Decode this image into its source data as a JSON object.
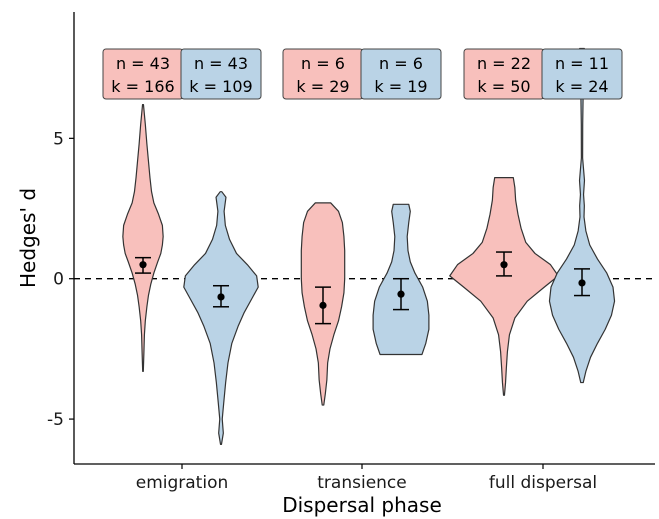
{
  "chart_data": {
    "type": "violin",
    "xlabel": "Dispersal phase",
    "ylabel": "Hedges' d",
    "ylim": [
      -6.6,
      9.5
    ],
    "yticks": [
      {
        "value": 5,
        "label": "5"
      },
      {
        "value": 0,
        "label": "0"
      },
      {
        "value": -5,
        "label": "-5"
      }
    ],
    "categories": [
      "emigration",
      "transience",
      "full dispersal"
    ],
    "reference_line": 0,
    "colors": {
      "group1": "#f8c0bc",
      "group2": "#bad3e6",
      "stroke": "#333333"
    },
    "groups": [
      {
        "category": "emigration",
        "series": [
          {
            "fill": "#f8c0bc",
            "n_label": "n = 43",
            "k_label": "k = 166",
            "mean": 0.5,
            "ci": [
              0.2,
              0.75
            ],
            "density": [
              [
                -3.3,
                0.2
              ],
              [
                -2.6,
                0.6
              ],
              [
                -2.0,
                0.9
              ],
              [
                -1.5,
                1.5
              ],
              [
                -1.0,
                2.5
              ],
              [
                -0.6,
                3.5
              ],
              [
                -0.2,
                5
              ],
              [
                0.2,
                7
              ],
              [
                0.6,
                9.5
              ],
              [
                0.9,
                11.5
              ],
              [
                1.2,
                12.5
              ],
              [
                1.5,
                13
              ],
              [
                1.9,
                12.5
              ],
              [
                2.3,
                10
              ],
              [
                2.7,
                7
              ],
              [
                3.1,
                5.5
              ],
              [
                3.6,
                4.5
              ],
              [
                4.2,
                3.5
              ],
              [
                4.8,
                2.5
              ],
              [
                5.5,
                1.5
              ],
              [
                6.2,
                0.3
              ]
            ]
          },
          {
            "fill": "#bad3e6",
            "n_label": "n = 43",
            "k_label": "k = 109",
            "mean": -0.65,
            "ci": [
              -1.0,
              -0.25
            ],
            "density": [
              [
                -5.9,
                0.3
              ],
              [
                -5.5,
                1.5
              ],
              [
                -5.0,
                0.8
              ],
              [
                -4.4,
                1.8
              ],
              [
                -3.7,
                3
              ],
              [
                -3.0,
                4.5
              ],
              [
                -2.3,
                7
              ],
              [
                -1.7,
                11
              ],
              [
                -1.2,
                15
              ],
              [
                -0.7,
                20
              ],
              [
                -0.3,
                24
              ],
              [
                0.1,
                23
              ],
              [
                0.5,
                17
              ],
              [
                0.9,
                10
              ],
              [
                1.4,
                5.5
              ],
              [
                1.9,
                2.8
              ],
              [
                2.4,
                2
              ],
              [
                2.9,
                3.2
              ],
              [
                3.1,
                0.5
              ]
            ]
          }
        ]
      },
      {
        "category": "transience",
        "series": [
          {
            "fill": "#f8c0bc",
            "n_label": "n = 6",
            "k_label": "k = 29",
            "mean": -0.95,
            "ci": [
              -1.6,
              -0.3
            ],
            "density": [
              [
                -4.5,
                0.5
              ],
              [
                -4.1,
                1.5
              ],
              [
                -3.6,
                2.5
              ],
              [
                -3.0,
                3
              ],
              [
                -2.5,
                4.5
              ],
              [
                -2.0,
                7
              ],
              [
                -1.5,
                10
              ],
              [
                -1.0,
                12
              ],
              [
                -0.5,
                13.5
              ],
              [
                0.0,
                14
              ],
              [
                0.5,
                14
              ],
              [
                1.0,
                14
              ],
              [
                1.5,
                13.5
              ],
              [
                2.0,
                12.5
              ],
              [
                2.4,
                10
              ],
              [
                2.7,
                5
              ]
            ]
          },
          {
            "fill": "#bad3e6",
            "n_label": "n = 6",
            "k_label": "k = 19",
            "mean": -0.55,
            "ci": [
              -1.1,
              0.0
            ],
            "density": [
              [
                -2.7,
                13.5
              ],
              [
                -2.3,
                16
              ],
              [
                -1.8,
                18
              ],
              [
                -1.3,
                18
              ],
              [
                -0.8,
                17
              ],
              [
                -0.3,
                14
              ],
              [
                0.2,
                9
              ],
              [
                0.6,
                6
              ],
              [
                1.0,
                4.5
              ],
              [
                1.5,
                4
              ],
              [
                2.0,
                5
              ],
              [
                2.4,
                6
              ],
              [
                2.65,
                5
              ]
            ]
          }
        ]
      },
      {
        "category": "full dispersal",
        "series": [
          {
            "fill": "#f8c0bc",
            "n_label": "n = 22",
            "k_label": "k = 50",
            "mean": 0.5,
            "ci": [
              0.1,
              0.95
            ],
            "density": [
              [
                -4.15,
                0.3
              ],
              [
                -3.7,
                1
              ],
              [
                -3.2,
                1.5
              ],
              [
                -2.6,
                2.2
              ],
              [
                -2.0,
                3.5
              ],
              [
                -1.4,
                7
              ],
              [
                -0.8,
                15
              ],
              [
                -0.3,
                26
              ],
              [
                0.1,
                35
              ],
              [
                0.5,
                30
              ],
              [
                0.9,
                20
              ],
              [
                1.3,
                14
              ],
              [
                1.8,
                11
              ],
              [
                2.3,
                9
              ],
              [
                2.8,
                7.5
              ],
              [
                3.25,
                7
              ],
              [
                3.6,
                6
              ]
            ]
          },
          {
            "fill": "#bad3e6",
            "n_label": "n = 11",
            "k_label": "k = 24",
            "mean": -0.15,
            "ci": [
              -0.6,
              0.35
            ],
            "density": [
              [
                -3.7,
                0.8
              ],
              [
                -3.3,
                2.5
              ],
              [
                -2.8,
                5.5
              ],
              [
                -2.3,
                10
              ],
              [
                -1.8,
                15
              ],
              [
                -1.3,
                19
              ],
              [
                -0.8,
                21
              ],
              [
                -0.3,
                20
              ],
              [
                0.2,
                16
              ],
              [
                0.7,
                10
              ],
              [
                1.2,
                5
              ],
              [
                1.7,
                2.5
              ],
              [
                2.2,
                1.3
              ],
              [
                2.6,
                1.5
              ],
              [
                3.0,
                1
              ],
              [
                3.5,
                1.6
              ],
              [
                3.9,
                1
              ],
              [
                4.3,
                0.4
              ],
              [
                5.5,
                0.45
              ],
              [
                6.8,
                0.8
              ],
              [
                7.5,
                2
              ],
              [
                8.2,
                1.5
              ]
            ]
          }
        ]
      }
    ]
  }
}
